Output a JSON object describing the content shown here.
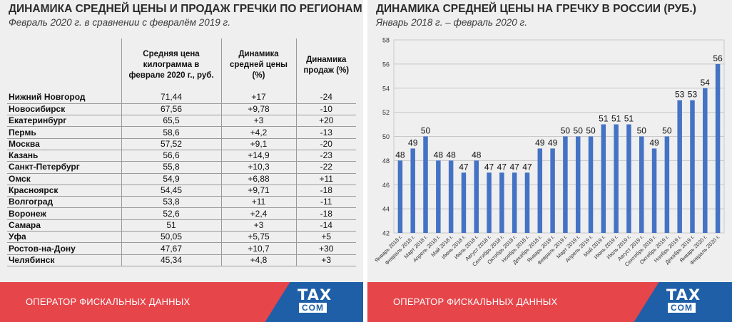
{
  "left_panel": {
    "title": "ДИНАМИКА СРЕДНЕЙ ЦЕНЫ И ПРОДАЖ ГРЕЧКИ ПО РЕГИОНАМ",
    "subtitle": "Февраль 2020 г. в сравнении с февралём 2019 г.",
    "columns": [
      "Средняя цена килограмма в феврале 2020 г., руб.",
      "Динамика средней цены (%)",
      "Динамика продаж (%)"
    ],
    "rows": [
      {
        "city": "Нижний Новгород",
        "price": "71,44",
        "price_change": "+17",
        "sales_change": "-24"
      },
      {
        "city": "Новосибирск",
        "price": "67,56",
        "price_change": "+9,78",
        "sales_change": "-10"
      },
      {
        "city": "Екатеринбург",
        "price": "65,5",
        "price_change": "+3",
        "sales_change": "+20"
      },
      {
        "city": "Пермь",
        "price": "58,6",
        "price_change": "+4,2",
        "sales_change": "-13"
      },
      {
        "city": "Москва",
        "price": "57,52",
        "price_change": "+9,1",
        "sales_change": "-20"
      },
      {
        "city": "Казань",
        "price": "56,6",
        "price_change": "+14,9",
        "sales_change": "-23"
      },
      {
        "city": "Санкт-Петербург",
        "price": "55,8",
        "price_change": "+10,3",
        "sales_change": "-22"
      },
      {
        "city": "Омск",
        "price": "54,9",
        "price_change": "+6,88",
        "sales_change": "+11"
      },
      {
        "city": "Красноярск",
        "price": "54,45",
        "price_change": "+9,71",
        "sales_change": "-18"
      },
      {
        "city": "Волгоград",
        "price": "53,8",
        "price_change": "+11",
        "sales_change": "-11"
      },
      {
        "city": "Воронеж",
        "price": "52,6",
        "price_change": "+2,4",
        "sales_change": "-18"
      },
      {
        "city": "Самара",
        "price": "51",
        "price_change": "+3",
        "sales_change": "-14"
      },
      {
        "city": "Уфа",
        "price": "50,05",
        "price_change": "+5,75",
        "sales_change": "+5"
      },
      {
        "city": "Ростов-на-Дону",
        "price": "47,67",
        "price_change": "+10,7",
        "sales_change": "+30"
      },
      {
        "city": "Челябинск",
        "price": "45,34",
        "price_change": "+4,8",
        "sales_change": "+3"
      }
    ]
  },
  "right_panel": {
    "title": "ДИНАМИКА СРЕДНЕЙ ЦЕНЫ НА ГРЕЧКУ В РОССИИ (РУБ.)",
    "subtitle": "Январь 2018 г. – февраль 2020 г."
  },
  "footer": {
    "label": "ОПЕРАТОР ФИСКАЛЬНЫХ ДАННЫХ",
    "logo_top": "TAX",
    "logo_bottom": "COM"
  },
  "colors": {
    "bar": "#4472c4",
    "footer_red": "#e6454a",
    "footer_blue": "#1f5fa8",
    "panel_bg": "#efefef"
  },
  "chart_data": {
    "type": "bar",
    "title": "ДИНАМИКА СРЕДНЕЙ ЦЕНЫ НА ГРЕЧКУ В РОССИИ (РУБ.)",
    "subtitle": "Январь 2018 г. – февраль 2020 г.",
    "xlabel": "",
    "ylabel": "",
    "ylim": [
      42,
      58
    ],
    "yticks": [
      42,
      44,
      46,
      48,
      50,
      52,
      54,
      56,
      58
    ],
    "grid": true,
    "categories": [
      "Январь 2018 г.",
      "Февраль 2018 г.",
      "Март 2018 г.",
      "Апрель 2018 г.",
      "Май 2018 г.",
      "Июнь 2018 г.",
      "Июль 2018 г.",
      "Август 2018 г.",
      "Сентябрь 2018 г.",
      "Октябрь 2018 г.",
      "Ноябрь 2018 г.",
      "Декабрь 2018 г.",
      "Январь 2019 г.",
      "Февраль 2019 г.",
      "Март 2019 г.",
      "Апрель 2019 г.",
      "Май 2019 г.",
      "Июнь 2019 г.",
      "Июль 2019 г.",
      "Август 2019 г.",
      "Сентябрь 2019 г.",
      "Октябрь 2019 г.",
      "Ноябрь 2019 г.",
      "Декабрь 2019 г.",
      "Январь 2020 г.",
      "Февраль 2020 г."
    ],
    "values": [
      48,
      49,
      50,
      48,
      48,
      47,
      48,
      47,
      47,
      47,
      47,
      49,
      49,
      50,
      50,
      50,
      51,
      51,
      51,
      50,
      49,
      50,
      53,
      53,
      54,
      56
    ],
    "data_labels": [
      "48",
      "49",
      "50",
      "48",
      "48",
      "47",
      "48",
      "47",
      "47",
      "47",
      "47",
      "49",
      "49",
      "50",
      "50",
      "50",
      "51",
      "51",
      "51",
      "50",
      "49",
      "50",
      "53",
      "53",
      "54",
      "56"
    ]
  }
}
